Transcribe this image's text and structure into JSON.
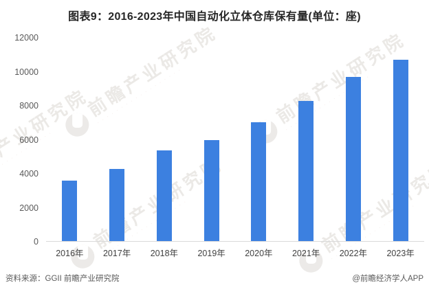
{
  "title": "图表9：2016-2023年中国自动化立体仓库保有量(单位：座)",
  "footer": {
    "source": "资料来源：GGII 前瞻产业研究院",
    "credit": "@前瞻经济学人APP"
  },
  "watermark": {
    "text": "前瞻产业研究院",
    "subtext": "·  ·  ·  ·  ·  ·  ·  ·  ·  ·  ·  ·  ·  ·  ·  ·  ·  ·"
  },
  "colors": {
    "bar": "#3C80E0",
    "axis_line": "#D9D9D9",
    "y_tick_label": "#595959",
    "x_label": "#404040",
    "title_text": "#262626",
    "footer_text": "#595959",
    "watermark_text": "#EBE9E6"
  },
  "chart_data": {
    "type": "bar",
    "title": "图表9：2016-2023年中国自动化立体仓库保有量(单位：座)",
    "categories": [
      "2016年",
      "2017年",
      "2018年",
      "2019年",
      "2020年",
      "2021年",
      "2022年",
      "2023年"
    ],
    "values": [
      3550,
      4250,
      5350,
      5950,
      7000,
      8250,
      9650,
      10650
    ],
    "xlabel": "",
    "ylabel": "",
    "unit": "座",
    "ylim": [
      0,
      12000
    ],
    "yticks": [
      0,
      2000,
      4000,
      6000,
      8000,
      10000,
      12000
    ],
    "grid": false,
    "legend": false,
    "bar_color": "#3C80E0"
  }
}
